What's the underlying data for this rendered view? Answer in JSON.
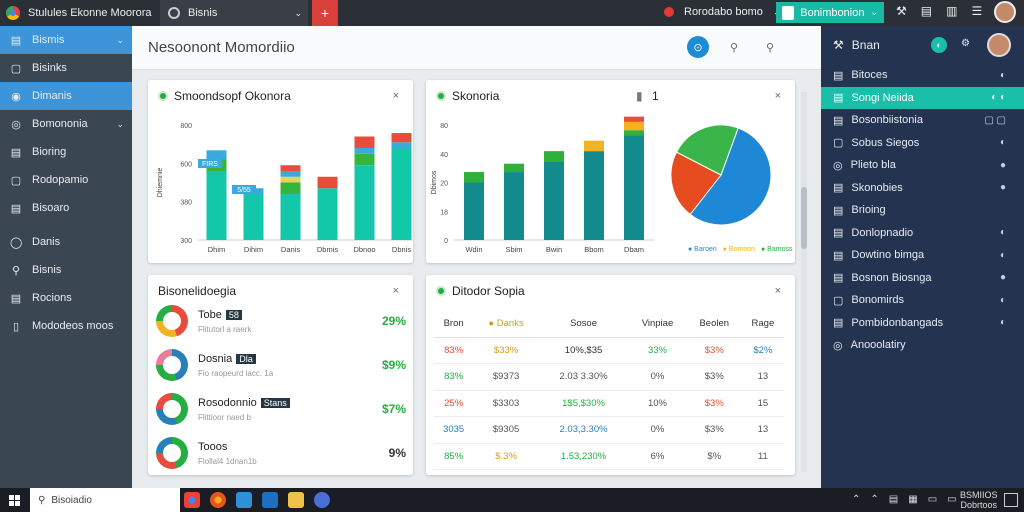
{
  "top": {
    "app_title": "Stulules Ekonne Moorora",
    "tab_label": "Bisnis",
    "plus": "+",
    "user_label": "Rorodabo bomo",
    "button_label": "Bonimbonion",
    "icons": [
      "tools-icon",
      "bell-icon",
      "chart-icon",
      "menu-icon"
    ]
  },
  "sidebar": {
    "items": [
      {
        "label": "Bismis",
        "icon": "▤",
        "chev": "⌄",
        "active": true
      },
      {
        "label": "Bisinks",
        "icon": "▢"
      },
      {
        "label": "Dimanis",
        "icon": "◉",
        "active": true
      },
      {
        "label": "Bomononia",
        "icon": "◎",
        "chev": "⌄"
      },
      {
        "label": "Bioring",
        "icon": "▤"
      },
      {
        "label": "Rodopamio",
        "icon": "▢"
      },
      {
        "label": "Bisoaro",
        "icon": "▤"
      },
      {
        "label": "Danis",
        "icon": "◯"
      },
      {
        "label": "Bisnis",
        "icon": "⚲"
      },
      {
        "label": "Rocions",
        "icon": "▤"
      },
      {
        "label": "Mododeos moos",
        "icon": "▯"
      }
    ]
  },
  "main": {
    "title": "Nesoonont Momordiio",
    "header_icons": [
      "!",
      "⚲",
      "⚲"
    ]
  },
  "card1": {
    "title": "Smoondsopf Okonora",
    "close": "×",
    "badge1": "FIRS",
    "badge2": "5/55"
  },
  "card2": {
    "title": "Skonoria",
    "pager_left": "▮",
    "pager_right": "1",
    "close": "×",
    "legend": [
      "● Baroen",
      "● Bomoon",
      "● Bamoss"
    ]
  },
  "chart_data": [
    {
      "type": "bar",
      "categories": [
        "Dhim",
        "Dihim",
        "Danis",
        "Dbmis",
        "Dbnoo",
        "Dbnis"
      ],
      "yticks": [
        "300",
        "380",
        "600",
        "800"
      ],
      "ylabel": "Dhiemnie",
      "series": [
        {
          "color": "#13c7a9",
          "values": [
            60,
            40,
            40,
            45,
            65,
            80
          ]
        },
        {
          "color": "#34b63e",
          "values": [
            10,
            0,
            10,
            0,
            10,
            0
          ]
        },
        {
          "color": "#e8d35a",
          "values": [
            0,
            0,
            5,
            0,
            0,
            0
          ]
        },
        {
          "color": "#3ba9df",
          "values": [
            8,
            5,
            5,
            0,
            5,
            5
          ]
        },
        {
          "color": "#e74c3c",
          "values": [
            0,
            0,
            5,
            10,
            10,
            8
          ]
        }
      ]
    },
    {
      "type": "bar",
      "categories": [
        "Wdin",
        "Sbim",
        "Bwin",
        "Bbom",
        "Dbam"
      ],
      "yticks": [
        "0",
        "18",
        "20",
        "40",
        "80"
      ],
      "ylabel": "Dbimos",
      "series": [
        {
          "color": "#138a8c",
          "values": [
            55,
            65,
            75,
            85,
            100
          ]
        },
        {
          "color": "#2fb03d",
          "values": [
            10,
            8,
            10,
            0,
            5
          ]
        },
        {
          "color": "#f4b221",
          "values": [
            0,
            0,
            0,
            10,
            8
          ]
        },
        {
          "color": "#e74c3c",
          "values": [
            0,
            0,
            0,
            0,
            5
          ]
        }
      ]
    },
    {
      "type": "pie",
      "slices": [
        {
          "color": "#1e88d6",
          "value": 55
        },
        {
          "color": "#e74c20",
          "value": 22
        },
        {
          "color": "#39b54a",
          "value": 23
        }
      ]
    }
  ],
  "card3": {
    "title": "Bisonelidoegia",
    "close": "×",
    "rows": [
      {
        "title": "Tobe",
        "badge": "58",
        "sub": "Flitutorl a raerk",
        "value": "29%",
        "value_color": "#27ae43",
        "colors": [
          "#e74c3c",
          "#f4b221",
          "#27ae43"
        ]
      },
      {
        "title": "Dosnia",
        "badge": "Dla",
        "sub": "Fio raopeurd lacc. 1a",
        "value": "$9%",
        "value_color": "#27ae43",
        "colors": [
          "#2980b9",
          "#27ae43",
          "#e67e9a"
        ]
      },
      {
        "title": "Rosodonnio",
        "badge": "Stans",
        "sub": "Flittioor naed b",
        "value": "$7%",
        "value_color": "#27ae43",
        "colors": [
          "#27ae43",
          "#2980b9",
          "#e74c3c"
        ]
      },
      {
        "title": "Tooos",
        "badge": "",
        "sub": "Flollal4 1dnan1b",
        "value": "9%",
        "value_color": "#333",
        "colors": [
          "#27ae43",
          "#e74c3c",
          "#2980b9"
        ]
      }
    ]
  },
  "card4": {
    "title": "Ditodor Sopia",
    "close": "×",
    "headers": [
      "Bron",
      "● Danks",
      "Sosoe",
      "Vinpiae",
      "Beolen",
      "Rage"
    ],
    "rows": [
      [
        {
          "t": "83%",
          "c": "#e74c3c"
        },
        {
          "t": "$33%",
          "c": "#d4a017"
        },
        {
          "t": "10%,$35",
          "c": "#333"
        },
        {
          "t": "33%",
          "c": "#27ae43"
        },
        {
          "t": "$3%",
          "c": "#e74c3c"
        },
        {
          "t": "$2%",
          "c": "#2980b9"
        }
      ],
      [
        {
          "t": "83%",
          "c": "#27ae43"
        },
        {
          "t": "$9373",
          "c": "#555"
        },
        {
          "t": "2.03 3.30%",
          "c": "#555"
        },
        {
          "t": "0%",
          "c": "#555"
        },
        {
          "t": "$3%",
          "c": "#555"
        },
        {
          "t": "13",
          "c": "#555"
        }
      ],
      [
        {
          "t": "25%",
          "c": "#e74c3c"
        },
        {
          "t": "$3303",
          "c": "#555"
        },
        {
          "t": "1$5,$30%",
          "c": "#27ae43"
        },
        {
          "t": "10%",
          "c": "#555"
        },
        {
          "t": "$3%",
          "c": "#e74c3c"
        },
        {
          "t": "15",
          "c": "#555"
        }
      ],
      [
        {
          "t": "3035",
          "c": "#2980b9"
        },
        {
          "t": "$9305",
          "c": "#555"
        },
        {
          "t": "2.03,3.30%",
          "c": "#2980b9"
        },
        {
          "t": "0%",
          "c": "#555"
        },
        {
          "t": "$3%",
          "c": "#555"
        },
        {
          "t": "13",
          "c": "#555"
        }
      ],
      [
        {
          "t": "85%",
          "c": "#27ae43"
        },
        {
          "t": "$.3%",
          "c": "#d4a017"
        },
        {
          "t": "1.53,230%",
          "c": "#27ae43"
        },
        {
          "t": "6%",
          "c": "#555"
        },
        {
          "t": "$%",
          "c": "#555"
        },
        {
          "t": "11",
          "c": "#555"
        }
      ]
    ]
  },
  "right": {
    "head": "Bnan",
    "items": [
      {
        "label": "Bitoces",
        "icon": "▤",
        "ri": "◐"
      },
      {
        "label": "Songi Neiida",
        "icon": "▤",
        "ri": "◐ ◐",
        "active": true
      },
      {
        "label": "Bosonbiistonia",
        "icon": "▤",
        "ri": "▢ ▢"
      },
      {
        "label": "Sobus Siegos",
        "icon": "▢",
        "ri": "◐"
      },
      {
        "label": "Plieto bla",
        "icon": "◎",
        "ri": "●"
      },
      {
        "label": "Skonobies",
        "icon": "▤",
        "ri": "●"
      },
      {
        "label": "Brioing",
        "icon": "▤",
        "ri": ""
      },
      {
        "label": "Donlopnadio",
        "icon": "▤",
        "ri": "◐"
      },
      {
        "label": "Dowtino bimga",
        "icon": "▤",
        "ri": "◐"
      },
      {
        "label": "Bosnon Biosnga",
        "icon": "▤",
        "ri": "●"
      },
      {
        "label": "Bonomirds",
        "icon": "▢",
        "ri": "◐"
      },
      {
        "label": "Pombidonbangads",
        "icon": "▤",
        "ri": "◐"
      },
      {
        "label": "Anooolatiry",
        "icon": "◎",
        "ri": ""
      }
    ]
  },
  "taskbar": {
    "search": "Bisoiadio",
    "clock_time": "BSMIIOS",
    "clock_date": "Dobrtoos"
  }
}
